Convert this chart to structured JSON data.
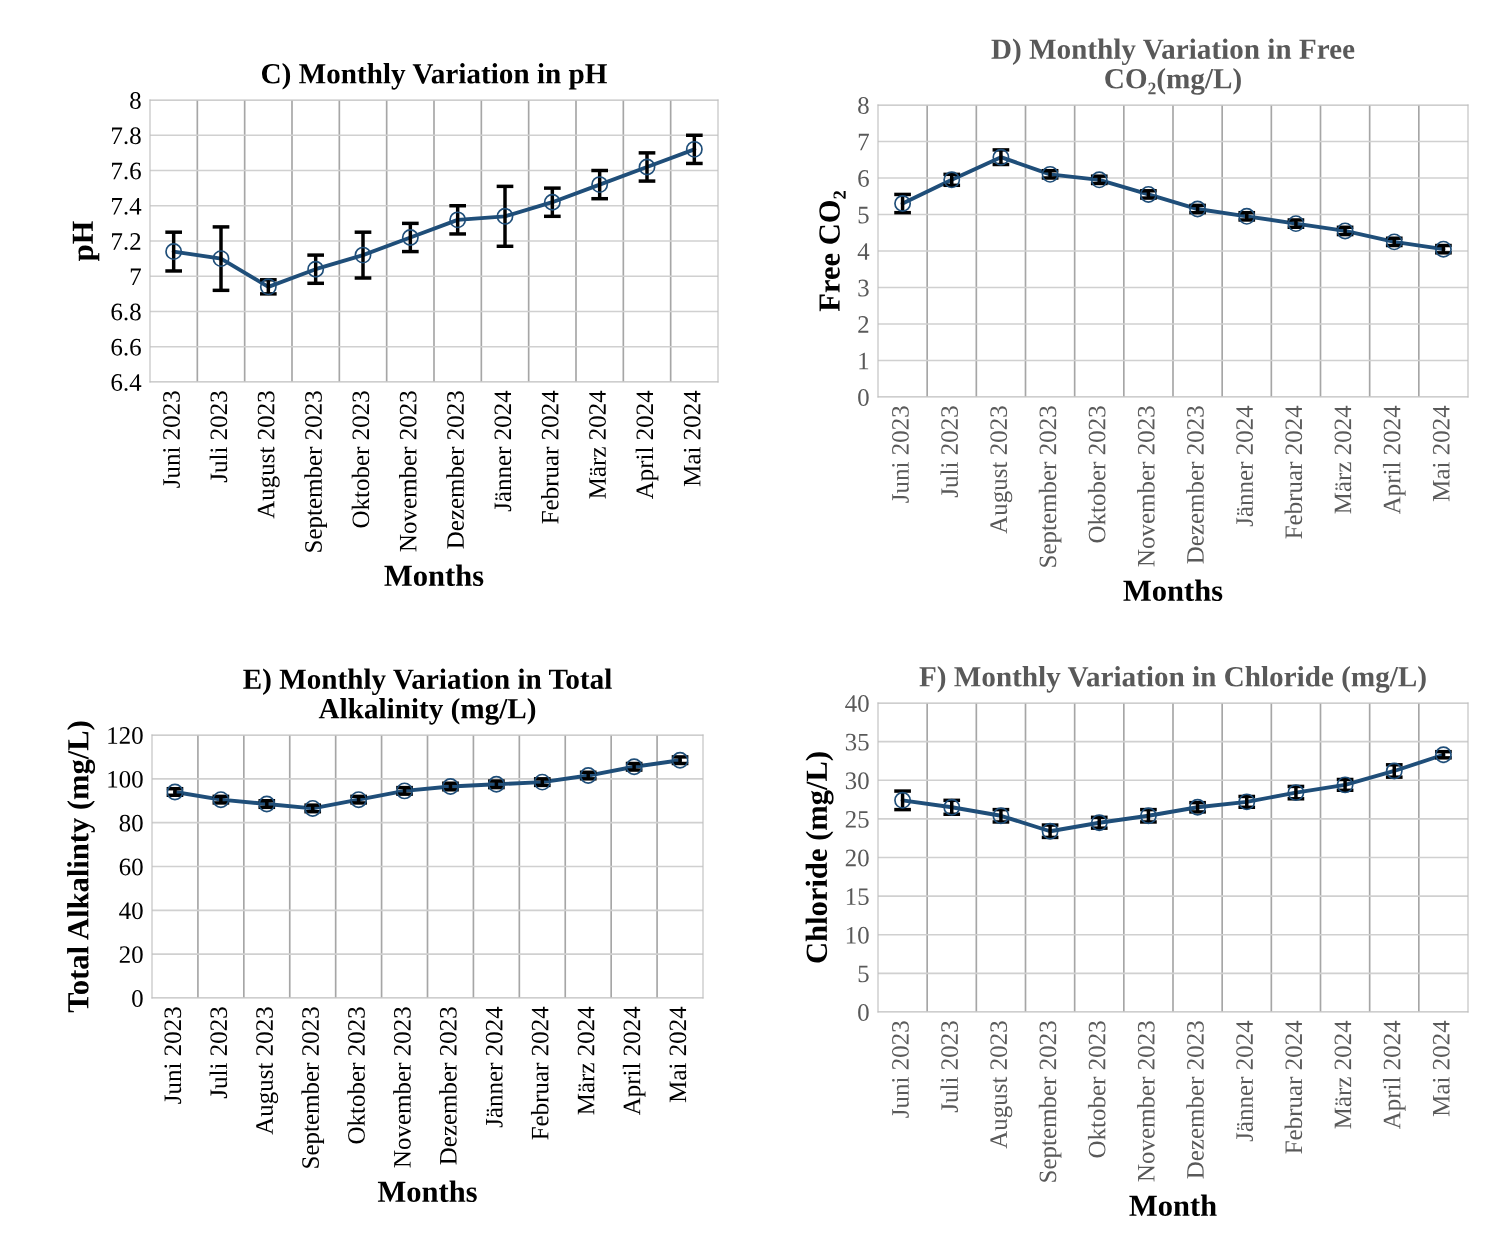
{
  "chart_data": [
    {
      "type": "line",
      "title": "C) Monthly Variation in pH",
      "xlabel": "Months",
      "ylabel": "pH",
      "categories": [
        "Juni 2023",
        "Juli 2023",
        "August 2023",
        "September 2023",
        "Oktober 2023",
        "November 2023",
        "Dezember 2023",
        "Jänner 2024",
        "Februar 2024",
        "März 2024",
        "April 2024",
        "Mai 2024"
      ],
      "series": [
        {
          "color": "#1f4e79",
          "values": [
            7.14,
            7.1,
            6.94,
            7.04,
            7.12,
            7.22,
            7.32,
            7.34,
            7.42,
            7.52,
            7.62,
            7.72
          ],
          "errors": [
            0.11,
            0.18,
            0.04,
            0.08,
            0.13,
            0.08,
            0.08,
            0.17,
            0.08,
            0.08,
            0.08,
            0.08
          ]
        }
      ],
      "ylim": [
        6.4,
        8
      ],
      "yticks": [
        6.4,
        6.6,
        6.8,
        7,
        7.2,
        7.4,
        7.6,
        7.8,
        8
      ],
      "grid": true,
      "marker": "circle",
      "line_style": "solid"
    },
    {
      "type": "line",
      "title": "D) Monthly Variation in Free\nCO₂(mg/L)",
      "xlabel": "Months",
      "ylabel": "Free CO₂",
      "categories": [
        "Juni 2023",
        "Juli 2023",
        "August 2023",
        "September 2023",
        "Oktober 2023",
        "November 2023",
        "Dezember 2023",
        "Jänner 2024",
        "Februar 2024",
        "März 2024",
        "April 2024",
        "Mai 2024"
      ],
      "series": [
        {
          "color": "#1f4e79",
          "values": [
            5.3,
            5.95,
            6.57,
            6.1,
            5.95,
            5.55,
            5.15,
            4.95,
            4.75,
            4.55,
            4.25,
            4.05
          ],
          "errors": [
            0.25,
            0.15,
            0.2,
            0.1,
            0.1,
            0.1,
            0.1,
            0.1,
            0.1,
            0.1,
            0.1,
            0.1
          ]
        }
      ],
      "ylim": [
        0,
        8
      ],
      "yticks": [
        0,
        1,
        2,
        3,
        4,
        5,
        6,
        7,
        8
      ],
      "grid": true,
      "marker": "circle",
      "line_style": "solid"
    },
    {
      "type": "line",
      "title": "E) Monthly Variation in Total\nAlkalinity (mg/L)",
      "xlabel": "Months",
      "ylabel": "Total Alkalinty (mg/L)",
      "categories": [
        "Juni 2023",
        "Juli 2023",
        "August 2023",
        "September 2023",
        "Oktober 2023",
        "November 2023",
        "Dezember 2023",
        "Jänner 2024",
        "Februar 2024",
        "März 2024",
        "April 2024",
        "Mai 2024"
      ],
      "series": [
        {
          "color": "#1f4e79",
          "values": [
            94,
            90.5,
            88.5,
            86.5,
            90.5,
            94.5,
            96.5,
            97.5,
            98.5,
            101.5,
            105.5,
            108.5
          ],
          "errors": [
            1.5,
            1.5,
            1.5,
            1.5,
            1.5,
            1.5,
            1.5,
            1.5,
            1.5,
            1.5,
            1.5,
            1.5
          ]
        }
      ],
      "ylim": [
        0,
        120
      ],
      "yticks": [
        0,
        20,
        40,
        60,
        80,
        100,
        120
      ],
      "grid": true,
      "marker": "circle",
      "line_style": "solid"
    },
    {
      "type": "line",
      "title": "F) Monthly Variation in Chloride (mg/L)",
      "xlabel": "Month",
      "ylabel": "Chloride (mg/L)",
      "categories": [
        "Juni 2023",
        "Juli 2023",
        "August 2023",
        "September 2023",
        "Oktober 2023",
        "November 2023",
        "Dezember 2023",
        "Jänner 2024",
        "Februar 2024",
        "März 2024",
        "April 2024",
        "Mai 2024"
      ],
      "series": [
        {
          "color": "#1f4e79",
          "values": [
            27.4,
            26.5,
            25.4,
            23.4,
            24.5,
            25.4,
            26.5,
            27.2,
            28.4,
            29.4,
            31.2,
            33.3
          ],
          "errors": [
            1.2,
            0.9,
            0.8,
            0.8,
            0.7,
            0.8,
            0.6,
            0.7,
            0.8,
            0.7,
            0.8,
            0.4
          ]
        }
      ],
      "ylim": [
        0,
        40
      ],
      "yticks": [
        0,
        5,
        10,
        15,
        20,
        25,
        30,
        35,
        40
      ],
      "grid": true,
      "marker": "circle",
      "line_style": "solid"
    }
  ]
}
